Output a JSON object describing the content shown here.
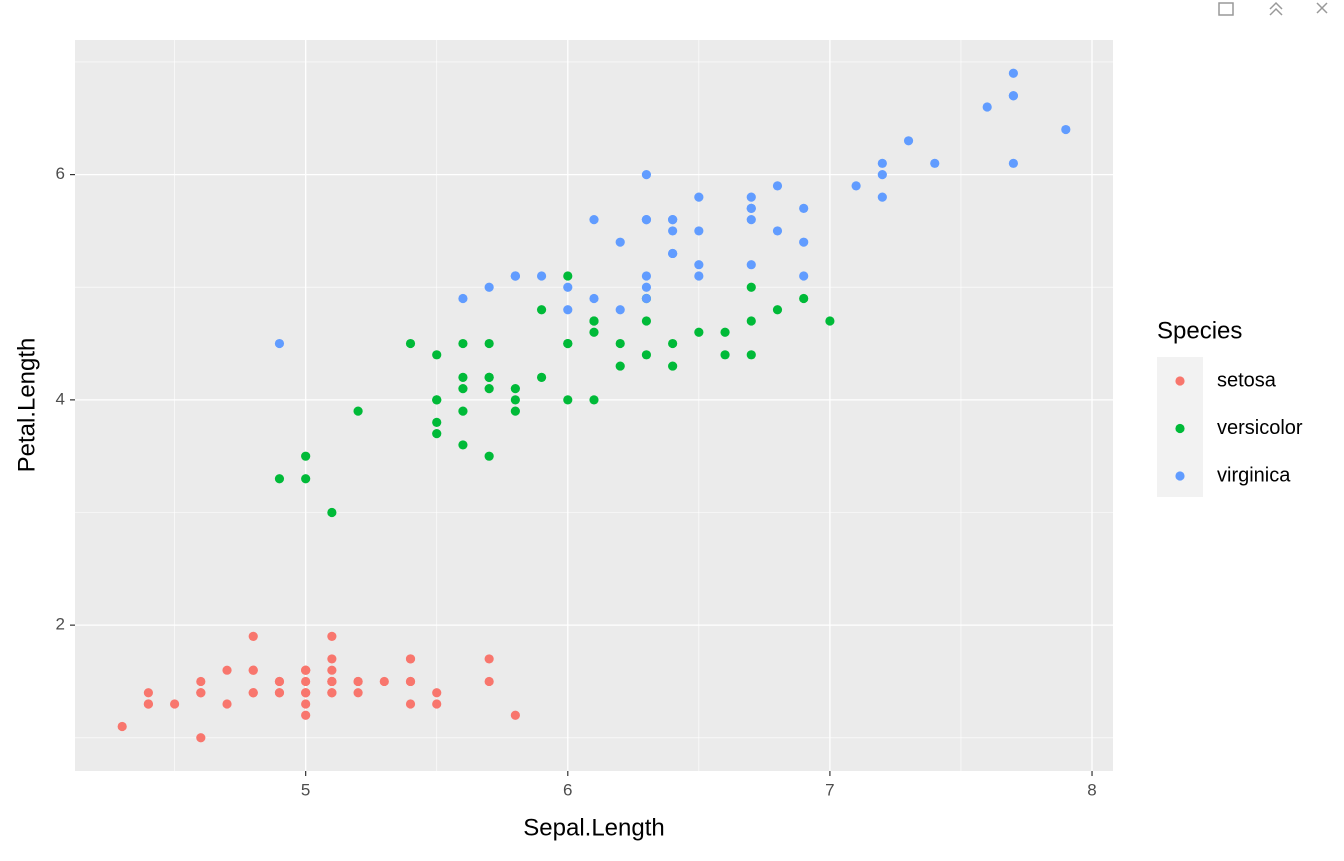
{
  "chart_data": {
    "type": "scatter",
    "x_label": "Sepal.Length",
    "y_label": "Petal.Length",
    "legend_title": "Species",
    "legend_position": "right",
    "grid": true,
    "xlim": [
      4.12,
      8.08
    ],
    "ylim": [
      0.705,
      7.195
    ],
    "xticks": [
      5,
      6,
      7,
      8
    ],
    "yticks": [
      2,
      4,
      6
    ],
    "series": [
      {
        "name": "setosa",
        "color": "#F8766D",
        "x": [
          5.1,
          4.9,
          4.7,
          4.6,
          5.0,
          5.4,
          4.6,
          5.0,
          4.4,
          4.9,
          5.4,
          4.8,
          4.8,
          4.3,
          5.8,
          5.7,
          5.4,
          5.1,
          5.7,
          5.1,
          5.4,
          5.1,
          4.6,
          5.1,
          4.8,
          5.0,
          5.0,
          5.2,
          5.2,
          4.7,
          4.8,
          5.4,
          5.2,
          5.5,
          4.9,
          5.0,
          5.5,
          4.9,
          4.4,
          5.1,
          5.0,
          4.5,
          4.4,
          5.0,
          5.1,
          4.8,
          5.1,
          4.6,
          5.3,
          5.0
        ],
        "y": [
          1.4,
          1.4,
          1.3,
          1.5,
          1.4,
          1.7,
          1.4,
          1.5,
          1.4,
          1.5,
          1.5,
          1.6,
          1.4,
          1.1,
          1.2,
          1.5,
          1.3,
          1.4,
          1.7,
          1.5,
          1.7,
          1.5,
          1.0,
          1.7,
          1.9,
          1.6,
          1.6,
          1.5,
          1.4,
          1.6,
          1.6,
          1.5,
          1.5,
          1.4,
          1.5,
          1.2,
          1.3,
          1.4,
          1.3,
          1.5,
          1.3,
          1.3,
          1.3,
          1.6,
          1.9,
          1.4,
          1.6,
          1.4,
          1.5,
          1.4
        ]
      },
      {
        "name": "versicolor",
        "color": "#00BA38",
        "x": [
          7.0,
          6.4,
          6.9,
          5.5,
          6.5,
          5.7,
          6.3,
          4.9,
          6.6,
          5.2,
          5.0,
          5.9,
          6.0,
          6.1,
          5.6,
          6.7,
          5.6,
          5.8,
          6.2,
          5.6,
          5.9,
          6.1,
          6.3,
          6.1,
          6.4,
          6.6,
          6.8,
          6.7,
          6.0,
          5.7,
          5.5,
          5.5,
          5.8,
          6.0,
          5.4,
          6.0,
          6.7,
          6.3,
          5.6,
          5.5,
          5.5,
          6.1,
          5.8,
          5.0,
          5.6,
          5.7,
          5.7,
          6.2,
          5.1,
          5.7
        ],
        "y": [
          4.7,
          4.5,
          4.9,
          4.0,
          4.6,
          4.5,
          4.7,
          3.3,
          4.6,
          3.9,
          3.5,
          4.2,
          4.0,
          4.7,
          3.6,
          4.4,
          4.5,
          4.1,
          4.5,
          3.9,
          4.8,
          4.0,
          4.9,
          4.7,
          4.3,
          4.4,
          4.8,
          5.0,
          4.5,
          3.5,
          3.8,
          3.7,
          3.9,
          5.1,
          4.5,
          4.5,
          4.7,
          4.4,
          4.1,
          4.0,
          4.4,
          4.6,
          4.0,
          3.3,
          4.2,
          4.2,
          4.2,
          4.3,
          3.0,
          4.1
        ]
      },
      {
        "name": "virginica",
        "color": "#619CFF",
        "x": [
          6.3,
          5.8,
          7.1,
          6.3,
          6.5,
          7.6,
          4.9,
          7.3,
          6.7,
          7.2,
          6.5,
          6.4,
          6.8,
          5.7,
          5.8,
          6.4,
          6.5,
          7.7,
          7.7,
          6.0,
          6.9,
          5.6,
          7.7,
          6.3,
          6.7,
          7.2,
          6.2,
          6.1,
          6.4,
          7.2,
          7.4,
          7.9,
          6.4,
          6.3,
          6.1,
          7.7,
          6.3,
          6.4,
          6.0,
          6.9,
          6.7,
          6.9,
          5.8,
          6.8,
          6.7,
          6.7,
          6.3,
          6.5,
          6.2,
          5.9
        ],
        "y": [
          6.0,
          5.1,
          5.9,
          5.6,
          5.8,
          6.6,
          4.5,
          6.3,
          5.8,
          6.1,
          5.1,
          5.3,
          5.5,
          5.0,
          5.1,
          5.3,
          5.5,
          6.7,
          6.9,
          5.0,
          5.7,
          4.9,
          6.7,
          4.9,
          5.7,
          6.0,
          4.8,
          4.9,
          5.6,
          5.8,
          6.1,
          6.4,
          5.6,
          5.1,
          5.6,
          6.1,
          5.6,
          5.5,
          4.8,
          5.4,
          5.6,
          5.1,
          5.1,
          5.9,
          5.7,
          5.2,
          5.0,
          5.2,
          5.4,
          5.1
        ]
      }
    ]
  }
}
